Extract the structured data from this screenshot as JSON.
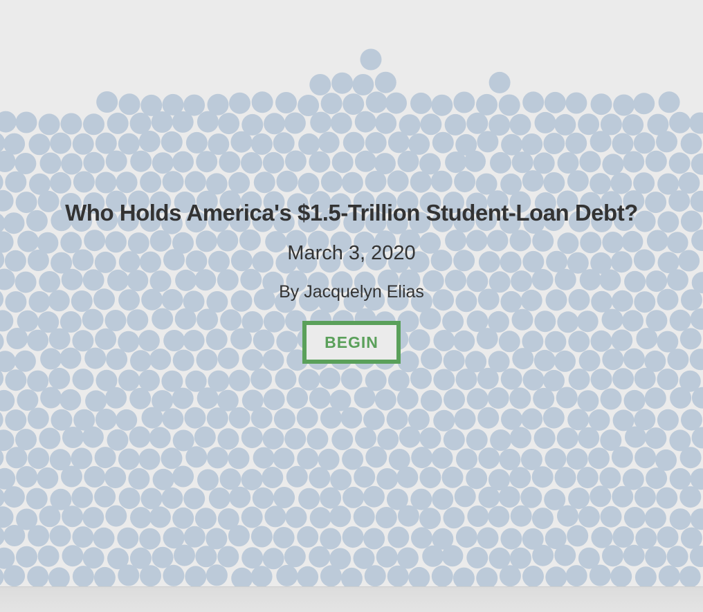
{
  "header": {
    "title": "Who Holds America's $1.5-Trillion Student-Loan Debt?",
    "date": "March 3, 2020",
    "byline": "By Jacquelyn Elias"
  },
  "actions": {
    "begin_label": "BEGIN"
  },
  "colors": {
    "background": "#ebebeb",
    "bubble": "#bccad9",
    "button_accent": "#5aa05a",
    "text": "#333333"
  }
}
